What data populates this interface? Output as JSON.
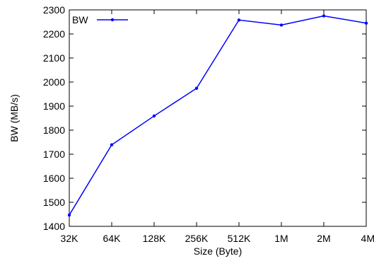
{
  "chart_data": {
    "type": "line",
    "title": "",
    "xlabel": "Size (Byte)",
    "ylabel": "BW (MB/s)",
    "categories": [
      "32K",
      "64K",
      "128K",
      "256K",
      "512K",
      "1M",
      "2M",
      "4M"
    ],
    "series": [
      {
        "name": "BW",
        "color": "#0000ff",
        "values": [
          1447,
          1739,
          1859,
          1974,
          2258,
          2237,
          2275,
          2245
        ]
      }
    ],
    "ylim": [
      1400,
      2300
    ],
    "yticks": [
      1400,
      1500,
      1600,
      1700,
      1800,
      1900,
      2000,
      2100,
      2200,
      2300
    ],
    "grid": false,
    "legend": "top-left"
  }
}
